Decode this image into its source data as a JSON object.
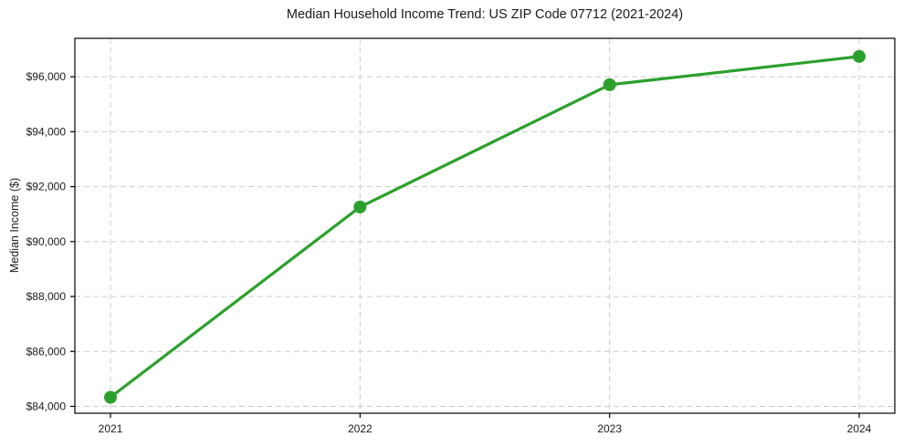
{
  "chart_data": {
    "type": "line",
    "title": "Median Household Income Trend: US ZIP Code 07712 (2021-2024)",
    "xlabel": "",
    "ylabel": "Median Income ($)",
    "categories": [
      "2021",
      "2022",
      "2023",
      "2024"
    ],
    "series": [
      {
        "name": "Median Household Income",
        "values": [
          84330,
          91260,
          95710,
          96740
        ]
      }
    ],
    "ylim": [
      83750,
      97400
    ],
    "yticks": [
      84000,
      86000,
      88000,
      90000,
      92000,
      94000,
      96000
    ],
    "ytick_labels": [
      "$84,000",
      "$86,000",
      "$88,000",
      "$90,000",
      "$92,000",
      "$94,000",
      "$96,000"
    ],
    "grid": true,
    "grid_style": "dashed",
    "legend": "none",
    "colors": {
      "line": "#2ca02c",
      "marker": "#2ca02c",
      "grid": "#cccccc",
      "axis": "#000000",
      "text": "#1a1a1a",
      "background": "#ffffff"
    }
  }
}
